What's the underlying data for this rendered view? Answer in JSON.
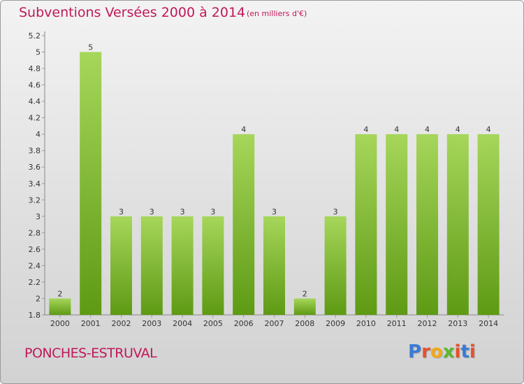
{
  "header": {
    "title": "Subventions Versées 2000 à 2014",
    "subtitle": "(en milliers d'€)"
  },
  "footer": {
    "place": "PONCHES-ESTRUVAL",
    "brand": {
      "text": "Proxiti",
      "letter_colors": [
        "#3a7bd5",
        "#e8502a",
        "#f2a818",
        "#5bb82f",
        "#e8502a",
        "#3a7bd5",
        "#e8502a"
      ]
    }
  },
  "colors": {
    "title": "#c0185a",
    "bar_top": "#a6d65a",
    "bar_bottom": "#5e9a14",
    "axis": "#888888",
    "grid_tick": "#999999"
  },
  "chart_data": {
    "type": "bar",
    "categories": [
      "2000",
      "2001",
      "2002",
      "2003",
      "2004",
      "2005",
      "2006",
      "2007",
      "2008",
      "2009",
      "2010",
      "2011",
      "2012",
      "2013",
      "2014"
    ],
    "values": [
      2,
      5,
      3,
      3,
      3,
      3,
      4,
      3,
      2,
      3,
      4,
      4,
      4,
      4,
      4
    ],
    "data_labels": [
      "2",
      "5",
      "3",
      "3",
      "3",
      "3",
      "4",
      "3",
      "2",
      "3",
      "4",
      "4",
      "4",
      "4",
      "4"
    ],
    "y_tick_values": [
      1.8,
      2,
      2.2,
      2.4,
      2.6,
      2.8,
      3,
      3.2,
      3.4,
      3.6,
      3.8,
      4,
      4.2,
      4.4,
      4.6,
      4.8,
      5,
      5.2
    ],
    "y_tick_labels": [
      "1.8",
      "2",
      "2.2",
      "2.4",
      "2.6",
      "2.8",
      "3",
      "3.2",
      "3.4",
      "3.6",
      "3.8",
      "4",
      "4.2",
      "4.4",
      "4.6",
      "4.8",
      "5",
      "5.2"
    ],
    "ylim": [
      1.8,
      5.2
    ],
    "grid": false,
    "legend": "none"
  }
}
